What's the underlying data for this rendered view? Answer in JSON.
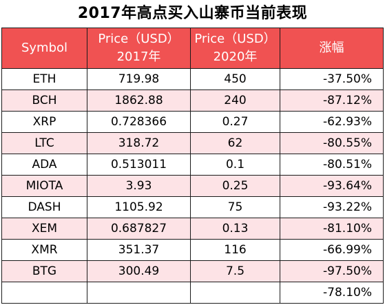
{
  "title": "2017年高点买入山寨币当前表现",
  "colors": {
    "header_bg": "#f05252",
    "header_text": "#ffffff",
    "row_shade": "#fde3e6",
    "row_plain": "#ffffff",
    "border": "#1a1a1a"
  },
  "header": {
    "symbol": "Symbol",
    "price_2017_line1": "Price（USD）",
    "price_2017_line2": "2017年",
    "price_2020_line1": "Price（USD）",
    "price_2020_line2": "2020年",
    "change": "涨幅"
  },
  "rows": [
    {
      "symbol": "ETH",
      "price_2017": "719.98",
      "price_2020": "450",
      "change": "-37.50%"
    },
    {
      "symbol": "BCH",
      "price_2017": "1862.88",
      "price_2020": "240",
      "change": "-87.12%"
    },
    {
      "symbol": "XRP",
      "price_2017": "0.728366",
      "price_2020": "0.27",
      "change": "-62.93%"
    },
    {
      "symbol": "LTC",
      "price_2017": "318.72",
      "price_2020": "62",
      "change": "-80.55%"
    },
    {
      "symbol": "ADA",
      "price_2017": "0.513011",
      "price_2020": "0.1",
      "change": "-80.51%"
    },
    {
      "symbol": "MIOTA",
      "price_2017": "3.93",
      "price_2020": "0.25",
      "change": "-93.64%"
    },
    {
      "symbol": "DASH",
      "price_2017": "1105.92",
      "price_2020": "75",
      "change": "-93.22%"
    },
    {
      "symbol": "XEM",
      "price_2017": "0.687827",
      "price_2020": "0.13",
      "change": "-81.10%"
    },
    {
      "symbol": "XMR",
      "price_2017": "351.37",
      "price_2020": "116",
      "change": "-66.99%"
    },
    {
      "symbol": "BTG",
      "price_2017": "300.49",
      "price_2020": "7.5",
      "change": "-97.50%"
    }
  ],
  "summary": {
    "symbol": "",
    "price_2017": "",
    "price_2020": "",
    "change": "-78.10%"
  }
}
